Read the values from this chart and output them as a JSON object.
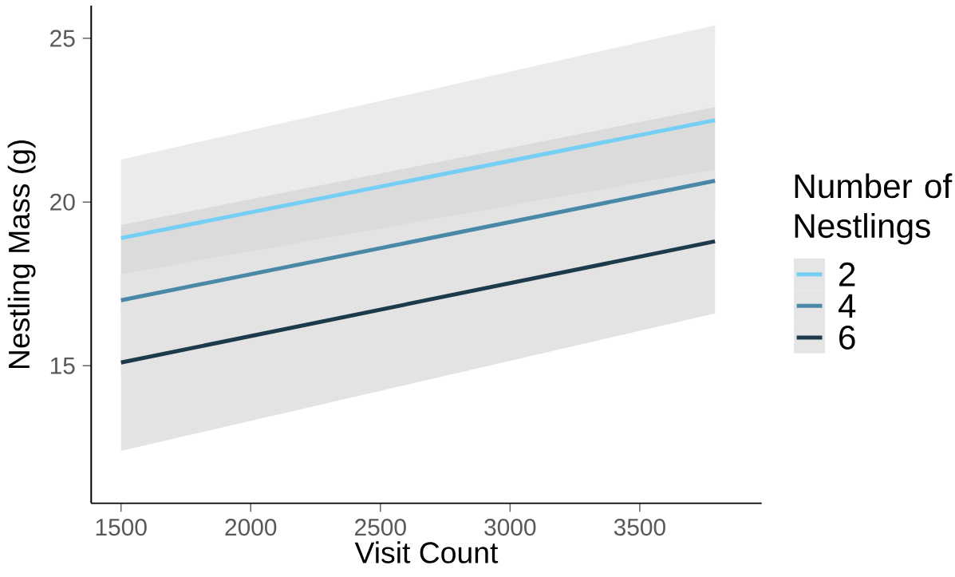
{
  "chart_data": {
    "type": "line",
    "xlabel": "Visit Count",
    "ylabel": "Nestling Mass (g)",
    "legend_title": "Number of Nestlings",
    "legend": "right",
    "grid": false,
    "x": [
      1500,
      3790
    ],
    "series": [
      {
        "name": "2",
        "color": "#75cff5",
        "values": [
          18.9,
          22.5
        ],
        "lower": [
          16.5,
          19.7
        ],
        "upper": [
          21.3,
          25.4
        ]
      },
      {
        "name": "4",
        "color": "#4a88a8",
        "values": [
          17.0,
          20.65
        ],
        "lower": [
          14.7,
          18.4
        ],
        "upper": [
          19.3,
          22.9
        ]
      },
      {
        "name": "6",
        "color": "#1c3a4a",
        "values": [
          15.1,
          18.8
        ],
        "lower": [
          12.4,
          16.6
        ],
        "upper": [
          17.8,
          21.0
        ]
      }
    ],
    "xlim": [
      1385,
      3970
    ],
    "ylim": [
      10.8,
      26.0
    ],
    "xticks": [
      1500,
      2000,
      2500,
      3000,
      3500
    ],
    "yticks": [
      15,
      20,
      25
    ]
  }
}
